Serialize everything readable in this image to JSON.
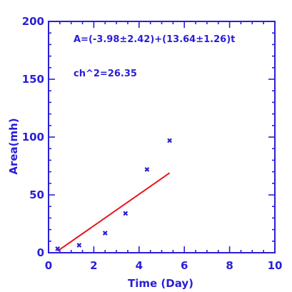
{
  "chart_data": {
    "type": "scatter",
    "xlabel": "Time (Day)",
    "ylabel": "Area(mh)",
    "xlim": [
      0,
      10
    ],
    "ylim": [
      0,
      200
    ],
    "x_ticks": [
      0,
      2,
      4,
      6,
      8,
      10
    ],
    "y_ticks": [
      0,
      50,
      100,
      150,
      200
    ],
    "x_tick_labels": [
      "0",
      "2",
      "4",
      "6",
      "8",
      "10"
    ],
    "y_tick_labels": [
      "0",
      "50",
      "100",
      "150",
      "200"
    ],
    "grid": false,
    "series": [
      {
        "kind": "points",
        "marker": "x",
        "color": "#2a1fd6",
        "x": [
          0.4,
          1.35,
          2.5,
          3.4,
          4.35,
          5.35
        ],
        "y": [
          3.5,
          6.5,
          17,
          34,
          72,
          97
        ]
      },
      {
        "kind": "fit-line",
        "color": "#e8141c",
        "x": [
          0.4,
          5.35
        ],
        "intercept": -3.98,
        "slope": 13.64
      }
    ],
    "annotations": [
      "A=(-3.98±2.42)+(13.64±1.26)t",
      "ch^2=26.35"
    ]
  },
  "colors": {
    "axis": "#2a1fd6",
    "fit": "#e8141c",
    "points": "#2a1fd6"
  }
}
